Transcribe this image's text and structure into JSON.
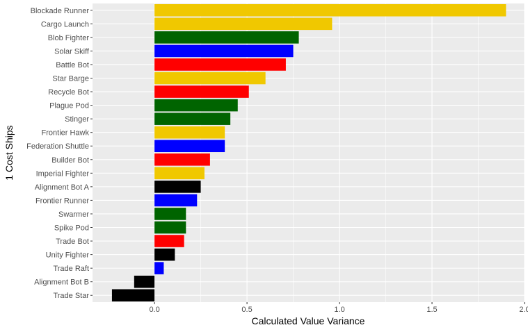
{
  "chart_data": {
    "type": "bar",
    "orientation": "horizontal",
    "xlabel": "Calculated Value Variance",
    "ylabel": "1 Cost Ships",
    "xlim": [
      -0.335,
      2.0
    ],
    "x_ticks": [
      0.0,
      0.5,
      1.0,
      1.5,
      2.0
    ],
    "x_tick_labels": [
      "0.0",
      "0.5",
      "1.0",
      "1.5",
      "2.0"
    ],
    "grid": true,
    "legend": "none",
    "colors": {
      "yellow": "#f0c800",
      "green": "#006400",
      "blue": "#0000ff",
      "red": "#ff0000",
      "black": "#000000",
      "panel": "#ebebeb",
      "grid_major": "#ffffff"
    },
    "bars": [
      {
        "category": "Blockade Runner",
        "value": 1.9,
        "color": "yellow"
      },
      {
        "category": "Cargo Launch",
        "value": 0.96,
        "color": "yellow"
      },
      {
        "category": "Blob Fighter",
        "value": 0.78,
        "color": "green"
      },
      {
        "category": "Solar Skiff",
        "value": 0.75,
        "color": "blue"
      },
      {
        "category": "Battle Bot",
        "value": 0.71,
        "color": "red"
      },
      {
        "category": "Star Barge",
        "value": 0.6,
        "color": "yellow"
      },
      {
        "category": "Recycle Bot",
        "value": 0.51,
        "color": "red"
      },
      {
        "category": "Plague Pod",
        "value": 0.45,
        "color": "green"
      },
      {
        "category": "Stinger",
        "value": 0.41,
        "color": "green"
      },
      {
        "category": "Frontier Hawk",
        "value": 0.38,
        "color": "yellow"
      },
      {
        "category": "Federation Shuttle",
        "value": 0.38,
        "color": "blue"
      },
      {
        "category": "Builder Bot",
        "value": 0.3,
        "color": "red"
      },
      {
        "category": "Imperial Fighter",
        "value": 0.27,
        "color": "yellow"
      },
      {
        "category": "Alignment Bot A",
        "value": 0.25,
        "color": "black"
      },
      {
        "category": "Frontier Runner",
        "value": 0.23,
        "color": "blue"
      },
      {
        "category": "Swarmer",
        "value": 0.17,
        "color": "green"
      },
      {
        "category": "Spike Pod",
        "value": 0.17,
        "color": "green"
      },
      {
        "category": "Trade Bot",
        "value": 0.16,
        "color": "red"
      },
      {
        "category": "Unity Fighter",
        "value": 0.11,
        "color": "black"
      },
      {
        "category": "Trade Raft",
        "value": 0.05,
        "color": "blue"
      },
      {
        "category": "Alignment Bot B",
        "value": -0.11,
        "color": "black"
      },
      {
        "category": "Trade Star",
        "value": -0.23,
        "color": "black"
      }
    ]
  }
}
